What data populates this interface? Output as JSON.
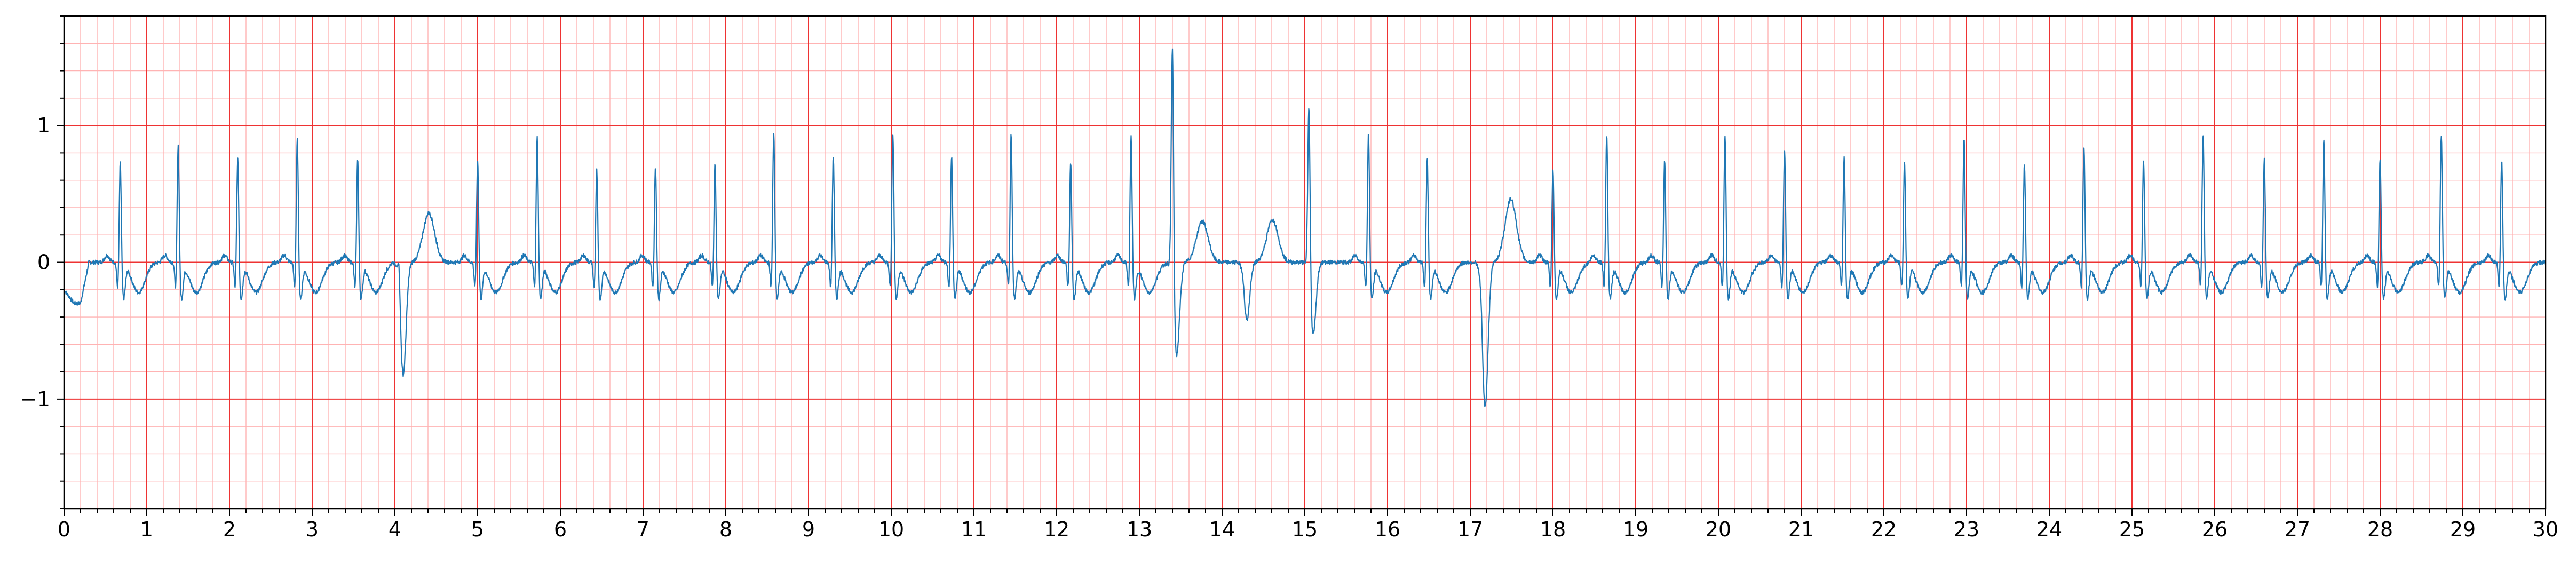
{
  "chart_data": {
    "type": "line",
    "title": "",
    "xlabel": "",
    "ylabel": "",
    "xlim": [
      0,
      30
    ],
    "ylim": [
      -1.8,
      1.8
    ],
    "x_ticks": [
      0,
      1,
      2,
      3,
      4,
      5,
      6,
      7,
      8,
      9,
      10,
      11,
      12,
      13,
      14,
      15,
      16,
      17,
      18,
      19,
      20,
      21,
      22,
      23,
      24,
      25,
      26,
      27,
      28,
      29,
      30
    ],
    "x_tick_labels": [
      "0",
      "1",
      "2",
      "3",
      "4",
      "5",
      "6",
      "7",
      "8",
      "9",
      "10",
      "11",
      "12",
      "13",
      "14",
      "15",
      "16",
      "17",
      "18",
      "19",
      "20",
      "21",
      "22",
      "23",
      "24",
      "25",
      "26",
      "27",
      "28",
      "29",
      "30"
    ],
    "y_ticks": [
      -1,
      0,
      1
    ],
    "y_tick_labels": [
      "−1",
      "0",
      "1"
    ],
    "grid": {
      "major_step_x": 1,
      "minor_step_x": 0.2,
      "major_step_y": 1,
      "minor_step_y": 0.2,
      "major_color": "#ee3333",
      "minor_color": "#ffb3b3"
    },
    "legend": "none",
    "colors": {
      "trace": "#1f77b4",
      "axes": "#000000",
      "background": "#ffffff"
    },
    "series": [
      {
        "baseline_segments": [
          [
            0,
            0,
            -0.2
          ],
          [
            0.12,
            0.2,
            -0.3
          ],
          [
            0.3,
            0.6,
            0
          ]
        ],
        "beats": [
          {
            "t": 0.68,
            "r": 0.77
          },
          {
            "t": 1.38,
            "r": 0.91
          },
          {
            "t": 2.1,
            "r": 0.8
          },
          {
            "t": 2.82,
            "r": 0.94
          },
          {
            "t": 3.55,
            "r": 0.81
          },
          {
            "t": 4.05,
            "r": 0.25,
            "s": -0.82,
            "tw": 0.36,
            "pvc": true
          },
          {
            "t": 5.0,
            "r": 0.79
          },
          {
            "t": 5.72,
            "r": 0.96
          },
          {
            "t": 6.44,
            "r": 0.72
          },
          {
            "t": 7.15,
            "r": 0.75
          },
          {
            "t": 7.87,
            "r": 0.77
          },
          {
            "t": 8.58,
            "r": 1.0
          },
          {
            "t": 9.3,
            "r": 0.82
          },
          {
            "t": 10.02,
            "r": 0.99
          },
          {
            "t": 10.73,
            "r": 0.82
          },
          {
            "t": 11.45,
            "r": 0.98
          },
          {
            "t": 12.17,
            "r": 0.78
          },
          {
            "t": 12.9,
            "r": 0.96
          },
          {
            "t": 13.4,
            "r": 1.8,
            "s": -0.68,
            "tw": 0.3,
            "pvc": true
          },
          {
            "t": 14.25,
            "r": 0.05,
            "s": -0.42,
            "tw": 0.31,
            "pvc": true
          },
          {
            "t": 15.05,
            "r": 1.3,
            "s": -0.52,
            "tw": 0.0,
            "pvc": true
          },
          {
            "t": 15.77,
            "r": 0.99
          },
          {
            "t": 16.48,
            "r": 0.8
          },
          {
            "t": 17.13,
            "r": 0.1,
            "s": -1.05,
            "tw": 0.46,
            "pvc": true
          },
          {
            "t": 18.0,
            "r": 0.73
          },
          {
            "t": 18.65,
            "r": 0.98
          },
          {
            "t": 19.35,
            "r": 0.8
          },
          {
            "t": 20.08,
            "r": 0.98
          },
          {
            "t": 20.8,
            "r": 0.86
          },
          {
            "t": 21.52,
            "r": 0.82
          },
          {
            "t": 22.25,
            "r": 0.78
          },
          {
            "t": 22.97,
            "r": 0.96
          },
          {
            "t": 23.7,
            "r": 0.77
          },
          {
            "t": 24.42,
            "r": 0.89
          },
          {
            "t": 25.14,
            "r": 0.8
          },
          {
            "t": 25.86,
            "r": 0.97
          },
          {
            "t": 26.6,
            "r": 0.8
          },
          {
            "t": 27.32,
            "r": 0.95
          },
          {
            "t": 28.0,
            "r": 0.8
          },
          {
            "t": 28.74,
            "r": 0.98
          },
          {
            "t": 29.47,
            "r": 0.8
          }
        ]
      }
    ]
  }
}
